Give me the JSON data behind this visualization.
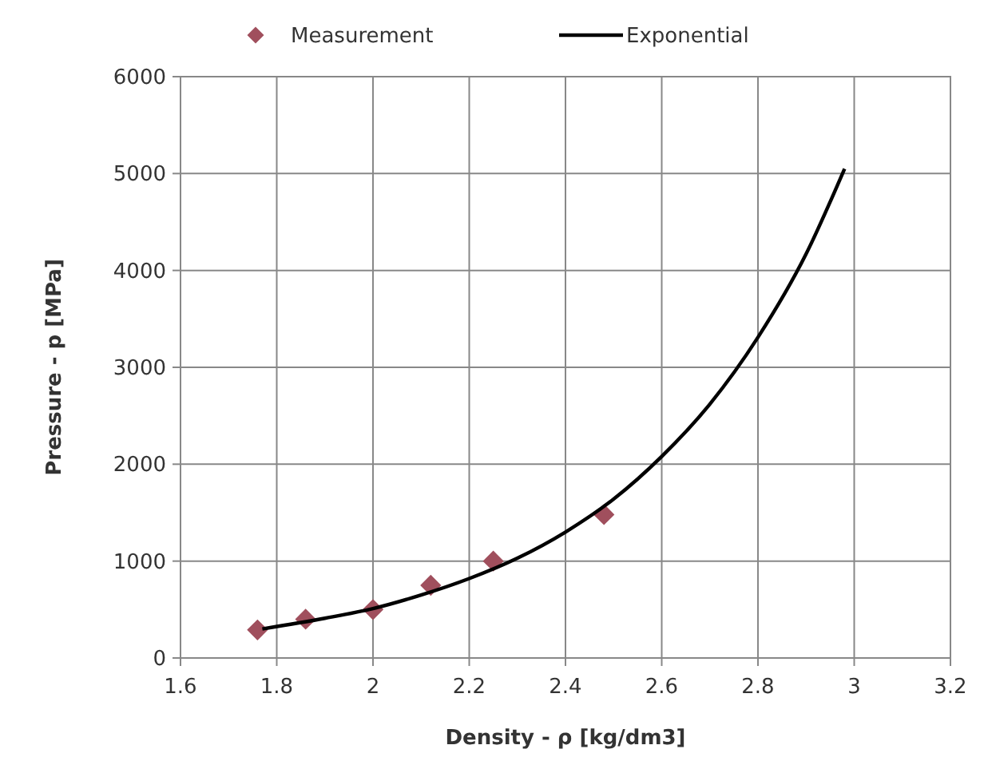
{
  "chart_data": {
    "type": "scatter",
    "xlabel": "Density - ρ [kg/dm3]",
    "ylabel": "Pressure - p [MPa]",
    "xlim": [
      1.6,
      3.2
    ],
    "xticks": [
      1.6,
      1.8,
      2,
      2.2,
      2.4,
      2.6,
      2.8,
      3,
      3.2
    ],
    "ylim": [
      0,
      6000
    ],
    "yticks": [
      0,
      1000,
      2000,
      3000,
      4000,
      5000,
      6000
    ],
    "grid": true,
    "legend": "top",
    "series": [
      {
        "name": "Measurement",
        "color": "#a04f5d",
        "marker": "diamond",
        "x": [
          1.76,
          1.86,
          2.0,
          2.12,
          2.25,
          2.48
        ],
        "values": [
          290,
          400,
          500,
          750,
          1000,
          1480
        ]
      },
      {
        "name": "Exponential",
        "type": "line",
        "color": "#000000",
        "marker": "none",
        "line_style": "solid",
        "x": [
          1.77,
          1.9,
          2.0,
          2.1,
          2.2,
          2.3,
          2.4,
          2.5,
          2.6,
          2.7,
          2.8,
          2.9,
          2.98
        ],
        "values": [
          300,
          410,
          510,
          650,
          820,
          1030,
          1300,
          1640,
          2080,
          2620,
          3310,
          4170,
          5050
        ]
      }
    ]
  }
}
